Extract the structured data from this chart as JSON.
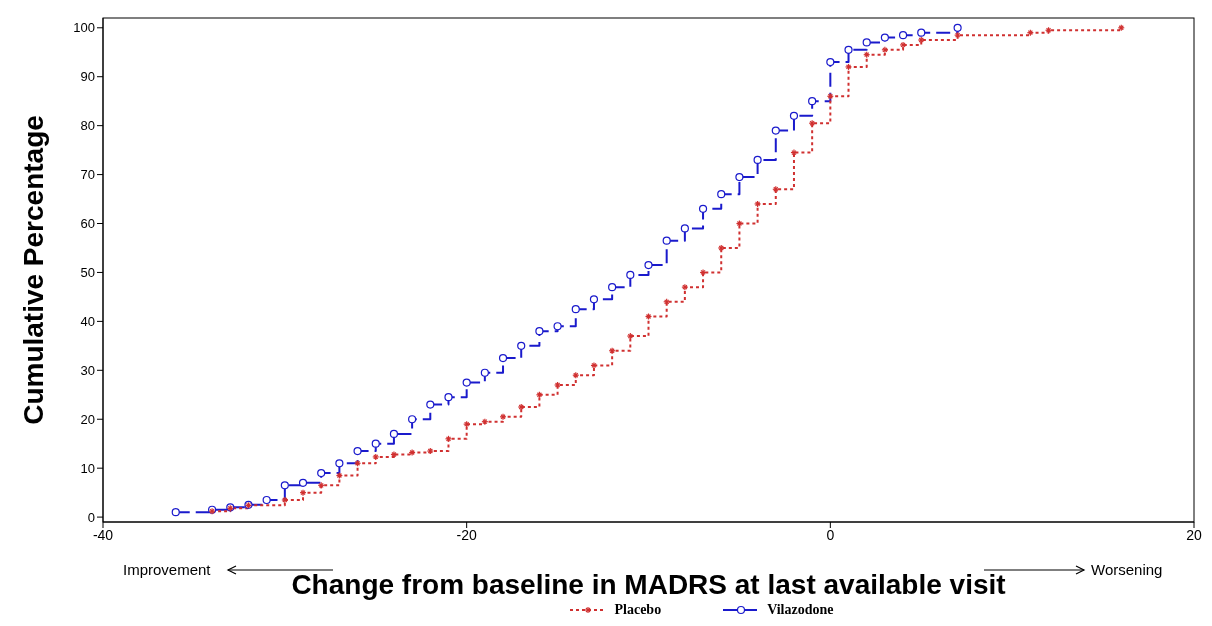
{
  "chart_data": {
    "type": "step",
    "xlabel": "Change from baseline in MADRS at last available visit",
    "ylabel": "Cumulative Percentage",
    "xlim": [
      -40,
      20
    ],
    "xticks": [
      -40,
      -20,
      0,
      20
    ],
    "ylim": [
      -1,
      102
    ],
    "yticks": [
      0,
      10,
      20,
      30,
      40,
      50,
      60,
      70,
      80,
      90,
      100
    ],
    "legend": "bottom",
    "annotations": [
      "Improvement",
      "Worsening"
    ],
    "series": [
      {
        "name": "Placebo",
        "color": "#d03030",
        "marker": "cross",
        "line_style": "dotted",
        "x": [
          -34,
          -33,
          -32,
          -30,
          -29,
          -28,
          -27,
          -26,
          -25,
          -24,
          -23,
          -22,
          -21,
          -20,
          -19,
          -18,
          -17,
          -16,
          -15,
          -14,
          -13,
          -12,
          -11,
          -10,
          -9,
          -8,
          -7,
          -6,
          -5,
          -4,
          -3,
          -2,
          -1,
          0,
          1,
          2,
          3,
          4,
          5,
          7,
          11,
          12,
          16
        ],
        "values": [
          1.2,
          1.8,
          2.4,
          3.5,
          5,
          6.5,
          8.5,
          11,
          12.3,
          12.8,
          13.2,
          13.5,
          16,
          19,
          19.5,
          20.5,
          22.5,
          25,
          27,
          29,
          31,
          34,
          37,
          41,
          44,
          47,
          50,
          55,
          60,
          64,
          67,
          74.5,
          80.5,
          86,
          92,
          94.5,
          95.5,
          96.5,
          97.5,
          98.5,
          99,
          99.5,
          100
        ]
      },
      {
        "name": "Vilazodone",
        "color": "#1a1acc",
        "marker": "circle",
        "line_style": "dashed",
        "x": [
          -36,
          -34,
          -33,
          -32,
          -31,
          -30,
          -29,
          -28,
          -27,
          -26,
          -25,
          -24,
          -23,
          -22,
          -21,
          -20,
          -19,
          -18,
          -17,
          -16,
          -15,
          -14,
          -13,
          -12,
          -11,
          -10,
          -9,
          -8,
          -7,
          -6,
          -5,
          -4,
          -3,
          -2,
          -1,
          0,
          1,
          2,
          3,
          4,
          5,
          7
        ],
        "values": [
          1,
          1.5,
          2,
          2.5,
          3.5,
          6.5,
          7,
          9,
          11,
          13.5,
          15,
          17,
          20,
          23,
          24.5,
          27.5,
          29.5,
          32.5,
          35,
          38,
          39,
          42.5,
          44.5,
          47,
          49.5,
          51.5,
          56.5,
          59,
          63,
          66,
          69.5,
          73,
          79,
          82,
          85,
          93,
          95.5,
          97,
          98,
          98.5,
          99,
          100
        ]
      }
    ]
  }
}
